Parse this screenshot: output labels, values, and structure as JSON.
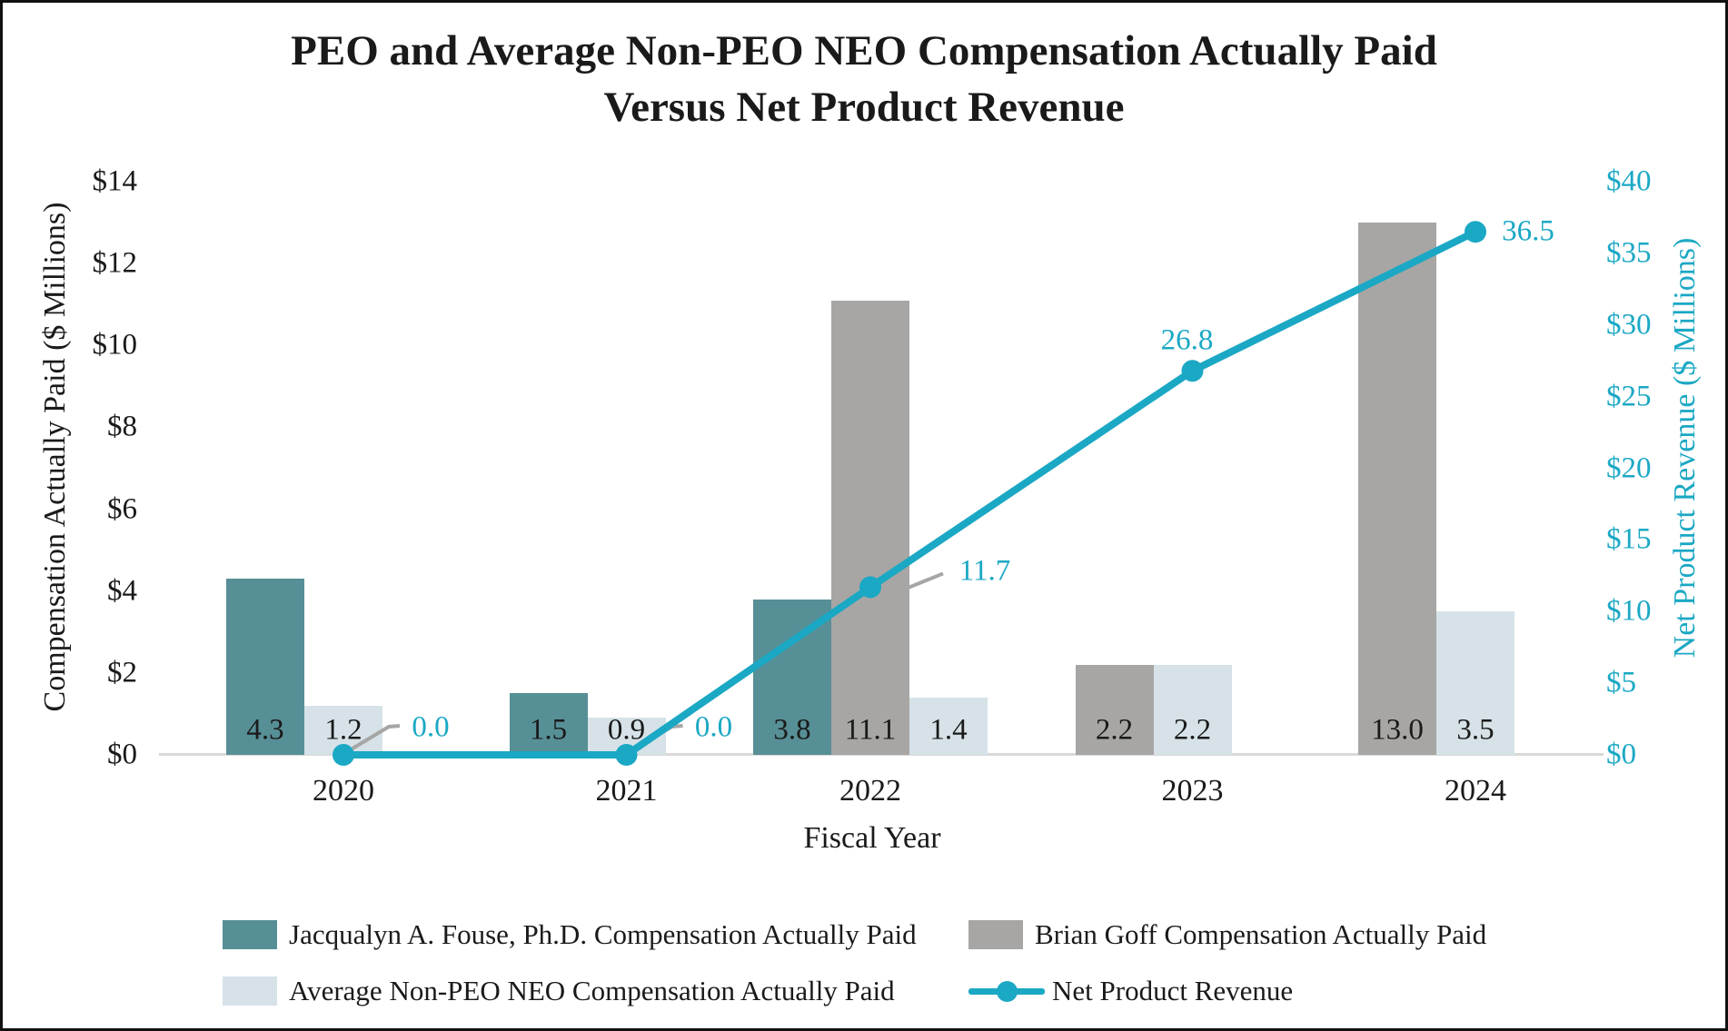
{
  "chart_data": {
    "type": "bar+line",
    "title_line1": "PEO and Average Non-PEO NEO Compensation Actually Paid",
    "title_line2": "Versus Net Product Revenue",
    "xlabel": "Fiscal Year",
    "categories": [
      "2020",
      "2021",
      "2022",
      "2023",
      "2024"
    ],
    "left_axis": {
      "label": "Compensation Actually Paid ($ Millions)",
      "min": 0,
      "max": 14,
      "step": 2,
      "ticks": [
        "$0",
        "$2",
        "$4",
        "$6",
        "$8",
        "$10",
        "$12",
        "$14"
      ]
    },
    "right_axis": {
      "label": "Net Product Revenue ($ Millions)",
      "min": 0,
      "max": 40,
      "step": 5,
      "ticks": [
        "$0",
        "$5",
        "$10",
        "$15",
        "$20",
        "$25",
        "$30",
        "$35",
        "$40"
      ]
    },
    "series": [
      {
        "name": "Jacqualyn A. Fouse, Ph.D. Compensation Actually Paid",
        "type": "bar",
        "color": "#578f96",
        "values": [
          4.3,
          1.5,
          3.8,
          null,
          null
        ],
        "value_labels": [
          "4.3",
          "1.5",
          "3.8",
          null,
          null
        ]
      },
      {
        "name": "Brian Goff Compensation Actually Paid",
        "type": "bar",
        "color": "#a8a6a4",
        "values": [
          null,
          null,
          11.1,
          2.2,
          13.0
        ],
        "value_labels": [
          null,
          null,
          "11.1",
          "2.2",
          "13.0"
        ]
      },
      {
        "name": "Average Non-PEO NEO Compensation Actually Paid",
        "type": "bar",
        "color": "#d6e2e8",
        "values": [
          1.2,
          0.9,
          1.4,
          2.2,
          3.5
        ],
        "value_labels": [
          "1.2",
          "0.9",
          "1.4",
          "2.2",
          "3.5"
        ]
      },
      {
        "name": "Net Product Revenue",
        "type": "line",
        "color": "#1ba8c4",
        "values": [
          0.0,
          0.0,
          11.7,
          26.8,
          36.5
        ],
        "point_labels": [
          "0.0",
          "0.0",
          "11.7",
          "26.8",
          "36.5"
        ]
      }
    ],
    "colors": {
      "text": "#1a1a1a",
      "revenue_text": "#1ba8c4",
      "leader_line": "#a6a6a6",
      "baseline": "#d9d9d9"
    },
    "layout_hints": {
      "grid": "off",
      "legend_position": "bottom"
    }
  }
}
